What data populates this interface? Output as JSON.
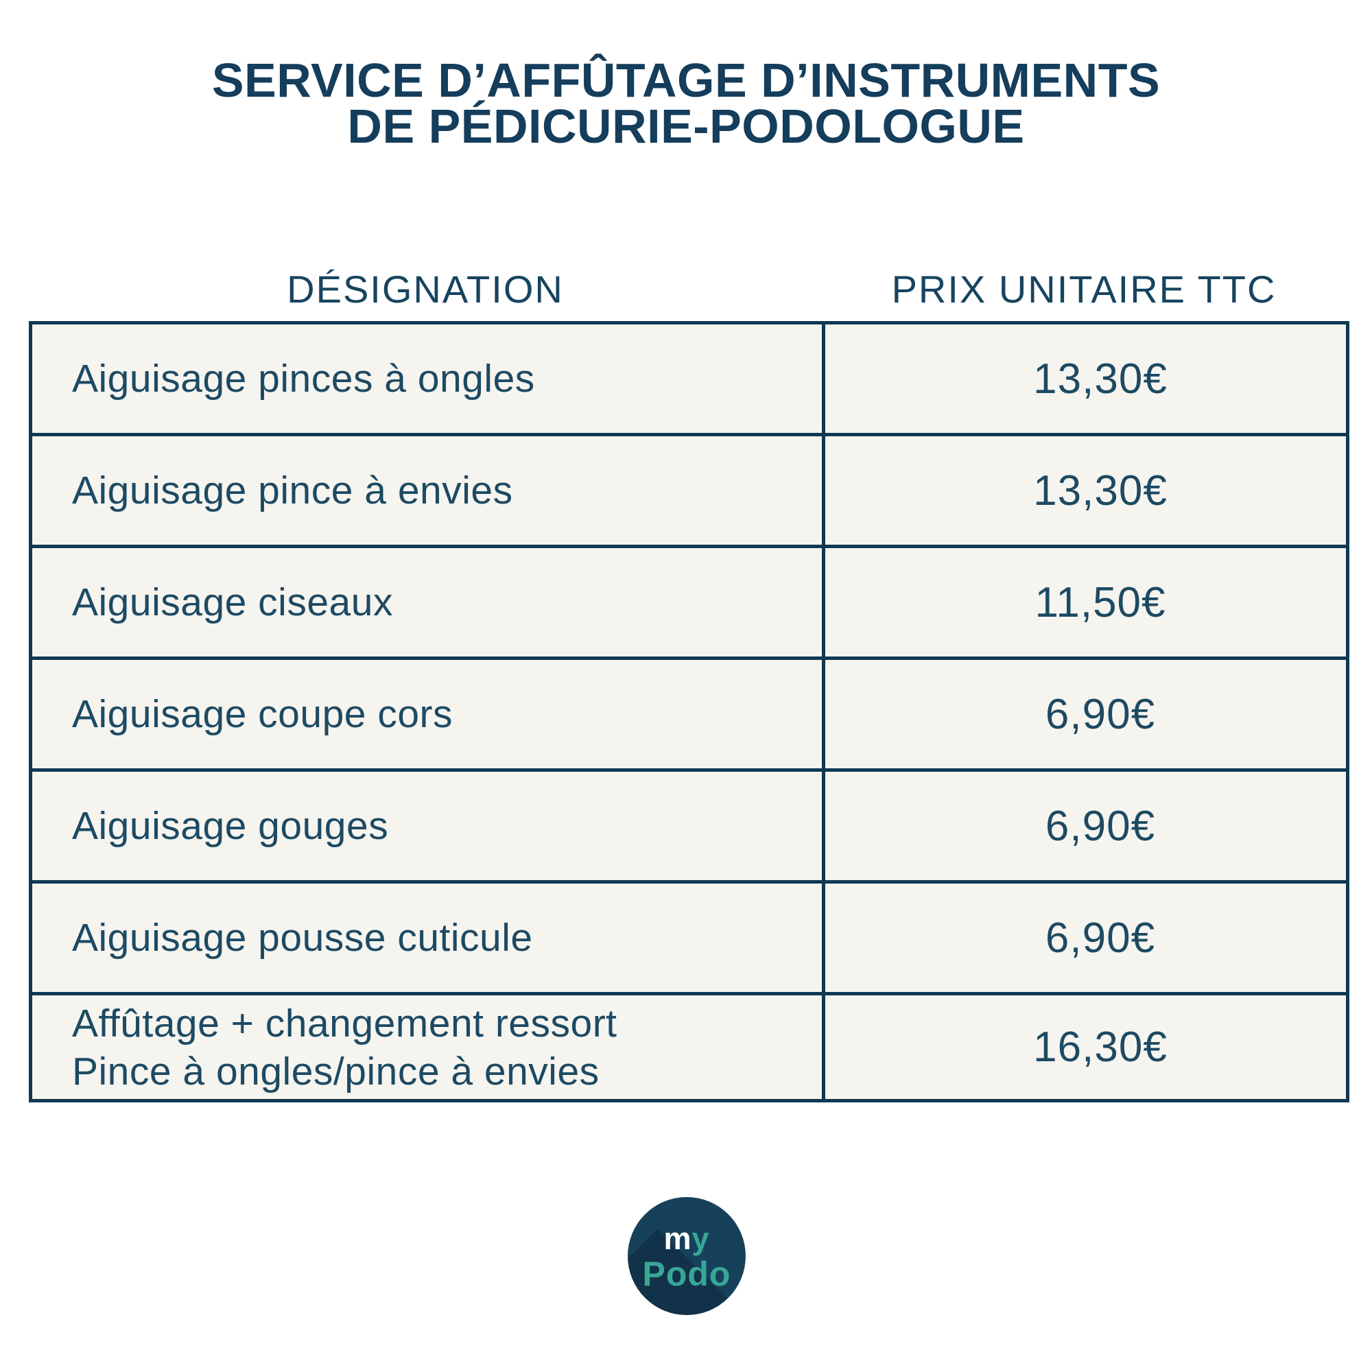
{
  "title": {
    "line1": "SERVICE D’AFFÛTAGE D’INSTRUMENTS",
    "line2": "DE PÉDICURIE-PODOLOGUE"
  },
  "table": {
    "headers": {
      "designation": "DÉSIGNATION",
      "price": "PRIX UNITAIRE TTC"
    },
    "rows": [
      {
        "designation": "Aiguisage pinces à ongles",
        "price": "13,30€"
      },
      {
        "designation": "Aiguisage pince à envies",
        "price": "13,30€"
      },
      {
        "designation": "Aiguisage ciseaux",
        "price": "11,50€"
      },
      {
        "designation": "Aiguisage coupe cors",
        "price": "6,90€"
      },
      {
        "designation": "Aiguisage gouges",
        "price": "6,90€"
      },
      {
        "designation": "Aiguisage pousse cuticule",
        "price": "6,90€"
      },
      {
        "designation": "Affûtage + changement ressort\nPince à ongles/pince à envies",
        "price": "16,30€"
      }
    ]
  },
  "logo": {
    "word1_part1": "m",
    "word1_part2": "y",
    "word2": "Podo"
  },
  "colors": {
    "title_navy": "#153d5c",
    "header_text": "#17445f",
    "table_border": "#0f3854",
    "cell_background": "#f6f4ef",
    "cell_text": "#1d4a63",
    "logo_background": "#17415a",
    "logo_teal": "#38a795",
    "page_background": "#ffffff"
  }
}
